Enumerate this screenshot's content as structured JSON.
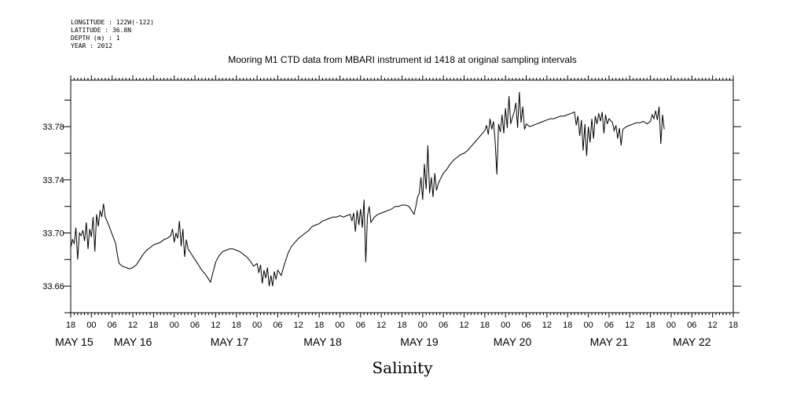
{
  "header": {
    "meta_lines": [
      "LONGITUDE : 122W(-122)",
      "LATITUDE : 36.8N",
      "DEPTH (m) : 1",
      "YEAR : 2012"
    ]
  },
  "chart_data": {
    "type": "line",
    "title": "Mooring M1 CTD data from MBARI instrument id 1418 at original sampling intervals",
    "xlabel": "Salinity",
    "ylabel": "",
    "x_units": "hours since 2012-05-14 18:00",
    "xlim": [
      0,
      192
    ],
    "ylim": [
      33.64,
      33.815
    ],
    "y_ticks": [
      33.66,
      33.7,
      33.74,
      33.78
    ],
    "y_tick_labels": [
      "33.66",
      "33.70",
      "33.74",
      "33.78"
    ],
    "x_hour_ticks": [
      0,
      6,
      12,
      18,
      24,
      30,
      36,
      42,
      48,
      54,
      60,
      66,
      72,
      78,
      84,
      90,
      96,
      102,
      108,
      114,
      120,
      126,
      132,
      138,
      144,
      150,
      156,
      162,
      168,
      174,
      180,
      186,
      192
    ],
    "x_hour_labels": [
      "18",
      "00",
      "06",
      "12",
      "18",
      "00",
      "06",
      "12",
      "18",
      "00",
      "06",
      "12",
      "18",
      "00",
      "06",
      "12",
      "18",
      "00",
      "06",
      "12",
      "18",
      "00",
      "06",
      "12",
      "18",
      "00",
      "06",
      "12",
      "18",
      "00",
      "06",
      "12",
      "18"
    ],
    "date_labels": [
      {
        "x": 1,
        "text": "MAY 15"
      },
      {
        "x": 18,
        "text": "MAY 16"
      },
      {
        "x": 46,
        "text": "MAY 17"
      },
      {
        "x": 73,
        "text": "MAY 18"
      },
      {
        "x": 101,
        "text": "MAY 19"
      },
      {
        "x": 128,
        "text": "MAY 20"
      },
      {
        "x": 156,
        "text": "MAY 21"
      },
      {
        "x": 180,
        "text": "MAY 22"
      }
    ],
    "series": [
      {
        "color": "#000000",
        "points": [
          [
            0,
            33.689
          ],
          [
            0.5,
            33.695
          ],
          [
            1,
            33.692
          ],
          [
            1.5,
            33.704
          ],
          [
            2,
            33.68
          ],
          [
            2.5,
            33.7
          ],
          [
            3,
            33.698
          ],
          [
            3.5,
            33.702
          ],
          [
            4,
            33.694
          ],
          [
            4.5,
            33.708
          ],
          [
            5,
            33.688
          ],
          [
            5.5,
            33.703
          ],
          [
            6,
            33.697
          ],
          [
            6.5,
            33.712
          ],
          [
            7,
            33.686
          ],
          [
            7.5,
            33.714
          ],
          [
            8,
            33.705
          ],
          [
            8.5,
            33.717
          ],
          [
            9,
            33.712
          ],
          [
            9.5,
            33.722
          ],
          [
            10,
            33.712
          ],
          [
            11,
            33.706
          ],
          [
            12,
            33.699
          ],
          [
            13,
            33.692
          ],
          [
            13.5,
            33.684
          ],
          [
            14,
            33.677
          ],
          [
            15,
            33.675
          ],
          [
            16,
            33.674
          ],
          [
            17,
            33.673
          ],
          [
            18,
            33.674
          ],
          [
            19,
            33.676
          ],
          [
            20,
            33.68
          ],
          [
            21,
            33.684
          ],
          [
            22,
            33.687
          ],
          [
            23,
            33.689
          ],
          [
            24,
            33.691
          ],
          [
            25,
            33.692
          ],
          [
            26,
            33.693
          ],
          [
            27,
            33.695
          ],
          [
            28,
            33.696
          ],
          [
            29,
            33.698
          ],
          [
            29.5,
            33.703
          ],
          [
            30,
            33.693
          ],
          [
            30.5,
            33.7
          ],
          [
            31,
            33.696
          ],
          [
            31.5,
            33.709
          ],
          [
            32,
            33.69
          ],
          [
            32.5,
            33.703
          ],
          [
            33,
            33.682
          ],
          [
            33.5,
            33.695
          ],
          [
            34,
            33.688
          ],
          [
            35,
            33.684
          ],
          [
            36,
            33.68
          ],
          [
            37,
            33.676
          ],
          [
            38,
            33.672
          ],
          [
            39,
            33.669
          ],
          [
            40,
            33.665
          ],
          [
            40.5,
            33.663
          ],
          [
            41,
            33.668
          ],
          [
            42,
            33.678
          ],
          [
            43,
            33.683
          ],
          [
            44,
            33.686
          ],
          [
            45,
            33.687
          ],
          [
            46,
            33.688
          ],
          [
            47,
            33.688
          ],
          [
            48,
            33.687
          ],
          [
            49,
            33.686
          ],
          [
            50,
            33.684
          ],
          [
            51,
            33.682
          ],
          [
            52,
            33.679
          ],
          [
            53,
            33.675
          ],
          [
            54,
            33.677
          ],
          [
            54.5,
            33.67
          ],
          [
            55,
            33.676
          ],
          [
            55.5,
            33.662
          ],
          [
            56,
            33.672
          ],
          [
            56.5,
            33.666
          ],
          [
            57,
            33.674
          ],
          [
            57.5,
            33.66
          ],
          [
            58,
            33.668
          ],
          [
            58.5,
            33.66
          ],
          [
            59,
            33.671
          ],
          [
            59.5,
            33.665
          ],
          [
            60,
            33.672
          ],
          [
            61,
            33.668
          ],
          [
            62,
            33.677
          ],
          [
            63,
            33.685
          ],
          [
            64,
            33.69
          ],
          [
            65,
            33.693
          ],
          [
            66,
            33.696
          ],
          [
            67,
            33.698
          ],
          [
            68,
            33.7
          ],
          [
            69,
            33.702
          ],
          [
            70,
            33.705
          ],
          [
            71,
            33.706
          ],
          [
            72,
            33.707
          ],
          [
            73,
            33.709
          ],
          [
            74,
            33.71
          ],
          [
            75,
            33.711
          ],
          [
            76,
            33.712
          ],
          [
            77,
            33.712
          ],
          [
            78,
            33.713
          ],
          [
            79,
            33.712
          ],
          [
            80,
            33.713
          ],
          [
            81,
            33.714
          ],
          [
            81.5,
            33.709
          ],
          [
            82,
            33.715
          ],
          [
            82.5,
            33.701
          ],
          [
            83,
            33.717
          ],
          [
            83.5,
            33.706
          ],
          [
            84,
            33.718
          ],
          [
            84.5,
            33.704
          ],
          [
            85,
            33.725
          ],
          [
            85.5,
            33.678
          ],
          [
            86,
            33.713
          ],
          [
            86.5,
            33.72
          ],
          [
            87,
            33.708
          ],
          [
            88,
            33.712
          ],
          [
            89,
            33.714
          ],
          [
            90,
            33.715
          ],
          [
            91,
            33.716
          ],
          [
            92,
            33.717
          ],
          [
            93,
            33.718
          ],
          [
            94,
            33.72
          ],
          [
            95,
            33.72
          ],
          [
            96,
            33.721
          ],
          [
            97,
            33.721
          ],
          [
            98,
            33.72
          ],
          [
            99,
            33.716
          ],
          [
            99.5,
            33.714
          ],
          [
            100,
            33.72
          ],
          [
            100.5,
            33.727
          ],
          [
            101,
            33.73
          ],
          [
            101.5,
            33.742
          ],
          [
            102,
            33.725
          ],
          [
            102.5,
            33.752
          ],
          [
            103,
            33.733
          ],
          [
            103.5,
            33.766
          ],
          [
            104,
            33.73
          ],
          [
            104.5,
            33.742
          ],
          [
            105,
            33.727
          ],
          [
            105.5,
            33.745
          ],
          [
            106,
            33.732
          ],
          [
            106.5,
            33.737
          ],
          [
            107,
            33.74
          ],
          [
            108,
            33.745
          ],
          [
            109,
            33.748
          ],
          [
            110,
            33.752
          ],
          [
            111,
            33.755
          ],
          [
            112,
            33.757
          ],
          [
            113,
            33.759
          ],
          [
            114,
            33.76
          ],
          [
            115,
            33.762
          ],
          [
            116,
            33.765
          ],
          [
            117,
            33.768
          ],
          [
            118,
            33.771
          ],
          [
            119,
            33.774
          ],
          [
            120,
            33.777
          ],
          [
            120.5,
            33.781
          ],
          [
            121,
            33.774
          ],
          [
            121.5,
            33.786
          ],
          [
            122,
            33.778
          ],
          [
            122.5,
            33.784
          ],
          [
            123,
            33.769
          ],
          [
            123.5,
            33.744
          ],
          [
            124,
            33.782
          ],
          [
            124.5,
            33.776
          ],
          [
            125,
            33.789
          ],
          [
            125.5,
            33.775
          ],
          [
            126,
            33.794
          ],
          [
            126.5,
            33.779
          ],
          [
            127,
            33.803
          ],
          [
            127.5,
            33.782
          ],
          [
            128,
            33.787
          ],
          [
            128.5,
            33.791
          ],
          [
            129,
            33.798
          ],
          [
            129.5,
            33.779
          ],
          [
            130,
            33.806
          ],
          [
            130.5,
            33.783
          ],
          [
            131,
            33.795
          ],
          [
            131.5,
            33.778
          ],
          [
            132,
            33.782
          ],
          [
            133,
            33.78
          ],
          [
            134,
            33.781
          ],
          [
            135,
            33.782
          ],
          [
            136,
            33.783
          ],
          [
            137,
            33.784
          ],
          [
            138,
            33.785
          ],
          [
            139,
            33.786
          ],
          [
            140,
            33.786
          ],
          [
            141,
            33.787
          ],
          [
            142,
            33.788
          ],
          [
            143,
            33.788
          ],
          [
            144,
            33.789
          ],
          [
            145,
            33.79
          ],
          [
            146,
            33.791
          ],
          [
            146.5,
            33.781
          ],
          [
            147,
            33.788
          ],
          [
            147.5,
            33.773
          ],
          [
            148,
            33.785
          ],
          [
            148.5,
            33.762
          ],
          [
            149,
            33.782
          ],
          [
            149.5,
            33.758
          ],
          [
            150,
            33.78
          ],
          [
            150.5,
            33.768
          ],
          [
            151,
            33.786
          ],
          [
            151.5,
            33.771
          ],
          [
            152,
            33.788
          ],
          [
            152.5,
            33.782
          ],
          [
            153,
            33.79
          ],
          [
            153.5,
            33.784
          ],
          [
            154,
            33.791
          ],
          [
            154.5,
            33.775
          ],
          [
            155,
            33.789
          ],
          [
            155.5,
            33.782
          ],
          [
            156,
            33.786
          ],
          [
            157,
            33.783
          ],
          [
            157.5,
            33.777
          ],
          [
            158,
            33.781
          ],
          [
            158.5,
            33.771
          ],
          [
            159,
            33.779
          ],
          [
            159.5,
            33.766
          ],
          [
            160,
            33.778
          ],
          [
            161,
            33.78
          ],
          [
            162,
            33.781
          ],
          [
            163,
            33.782
          ],
          [
            164,
            33.783
          ],
          [
            165,
            33.783
          ],
          [
            166,
            33.784
          ],
          [
            167,
            33.782
          ],
          [
            168,
            33.784
          ],
          [
            168.5,
            33.789
          ],
          [
            169,
            33.786
          ],
          [
            169.5,
            33.792
          ],
          [
            170,
            33.785
          ],
          [
            170.5,
            33.795
          ],
          [
            171,
            33.767
          ],
          [
            171.5,
            33.789
          ],
          [
            172,
            33.778
          ]
        ]
      }
    ]
  }
}
